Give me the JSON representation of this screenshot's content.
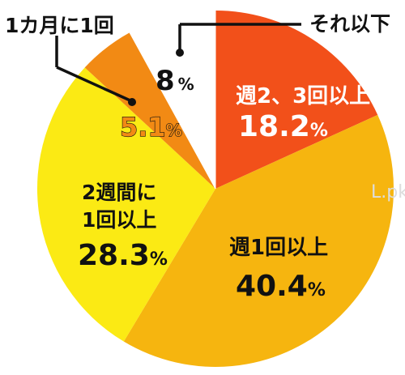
{
  "chart_data": {
    "type": "pie",
    "start_angle_deg": 0,
    "direction": "clockwise",
    "slices": [
      {
        "name": "週2、3回以上",
        "value": 18.2,
        "percent_text": "18.2",
        "color": "#f2501a"
      },
      {
        "name": "週1回以上",
        "value": 40.4,
        "percent_text": "40.4",
        "color": "#f6b50f"
      },
      {
        "name": "2週間に1回以上",
        "name_lines": [
          "2週間に",
          "1回以上"
        ],
        "value": 28.3,
        "percent_text": "28.3",
        "color": "#fbea14"
      },
      {
        "name": "1カ月に1回",
        "value": 5.1,
        "percent_text": "5.1",
        "color": "#f28a14"
      },
      {
        "name": "それ以下",
        "value": 8,
        "percent_text": "8",
        "color": "#ffffff"
      }
    ],
    "unit": "%"
  },
  "watermark": "L.pk",
  "colors": {
    "outline": "#111111",
    "label_dark": "#111111",
    "label_light": "#ffffff"
  }
}
